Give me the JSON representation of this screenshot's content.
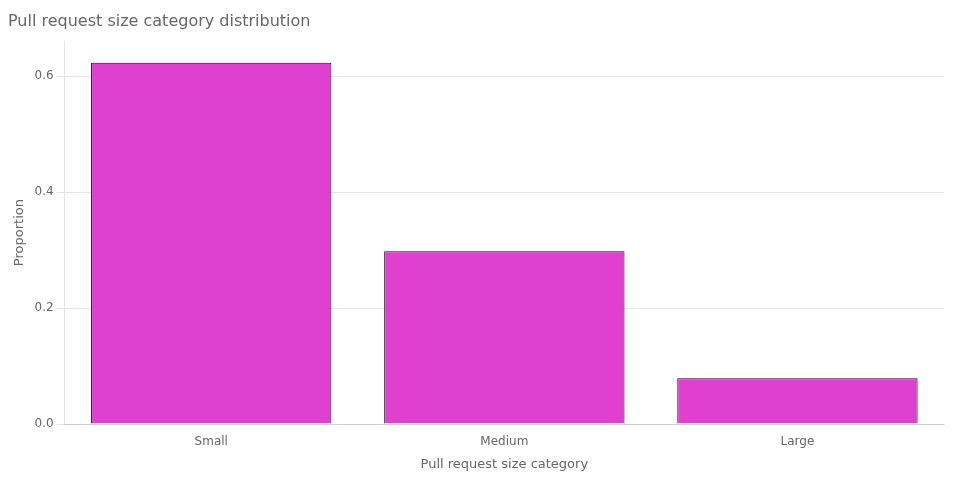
{
  "chart_data": {
    "type": "bar",
    "title": "Pull request size category distribution",
    "xlabel": "Pull request size category",
    "ylabel": "Proportion",
    "categories": [
      "Small",
      "Medium",
      "Large"
    ],
    "values": [
      0.623,
      0.298,
      0.079
    ],
    "color": "#E040D0",
    "ylim": [
      0.0,
      0.66
    ],
    "yticks": [
      {
        "value": 0.0,
        "label": "0.0"
      },
      0.2,
      0.4,
      0.6
    ],
    "grid": true
  }
}
